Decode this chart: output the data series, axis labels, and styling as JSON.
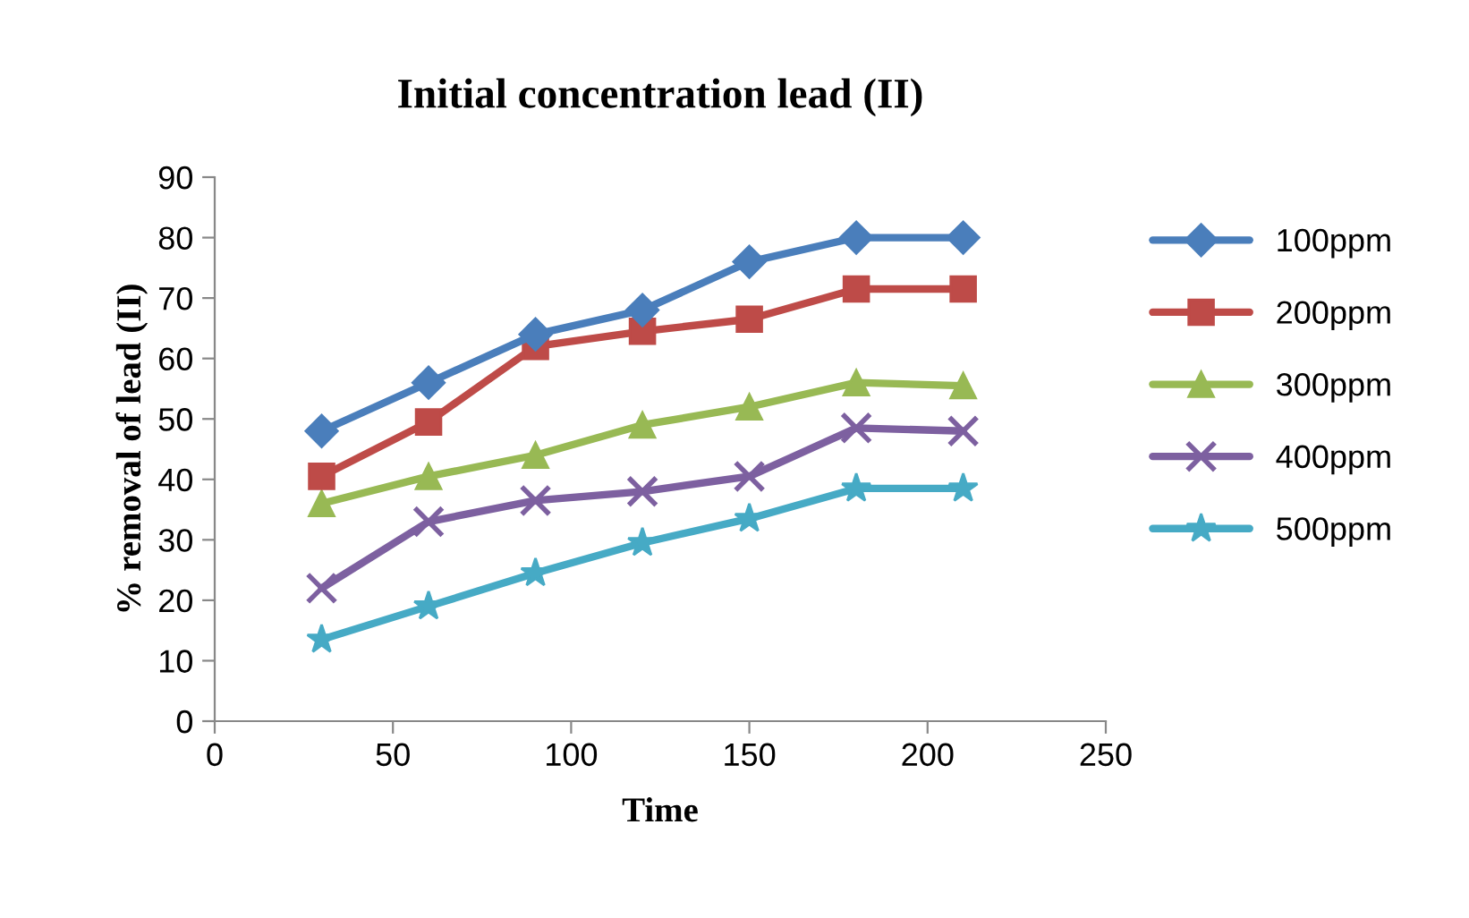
{
  "chart_data": {
    "type": "line",
    "title": "Initial concentration lead (II)",
    "xlabel": "Time",
    "ylabel": "% removal of lead (II)",
    "x": [
      30,
      60,
      90,
      120,
      150,
      180,
      210
    ],
    "series": [
      {
        "name": "100ppm",
        "color": "#4a7ebb",
        "marker": "diamond",
        "values": [
          48,
          56,
          64,
          68,
          76,
          80,
          80
        ]
      },
      {
        "name": "200ppm",
        "color": "#be4b48",
        "marker": "square",
        "values": [
          40.5,
          49.5,
          62,
          64.5,
          66.5,
          71.5,
          71.5
        ]
      },
      {
        "name": "300ppm",
        "color": "#98b954",
        "marker": "triangle",
        "values": [
          36,
          40.5,
          44,
          49,
          52,
          56,
          55.5
        ]
      },
      {
        "name": "400ppm",
        "color": "#7d60a0",
        "marker": "cross",
        "values": [
          22,
          33,
          36.5,
          38,
          40.5,
          48.5,
          48
        ]
      },
      {
        "name": "500ppm",
        "color": "#46aac5",
        "marker": "star",
        "values": [
          13.5,
          19,
          24.5,
          29.5,
          33.5,
          38.5,
          38.5
        ]
      }
    ],
    "xlim": [
      0,
      250
    ],
    "xticks": [
      0,
      50,
      100,
      150,
      200,
      250
    ],
    "ylim": [
      0,
      90
    ],
    "yticks": [
      0,
      10,
      20,
      30,
      40,
      50,
      60,
      70,
      80,
      90
    ],
    "grid": false,
    "legend": "right",
    "line_style": "solid"
  }
}
